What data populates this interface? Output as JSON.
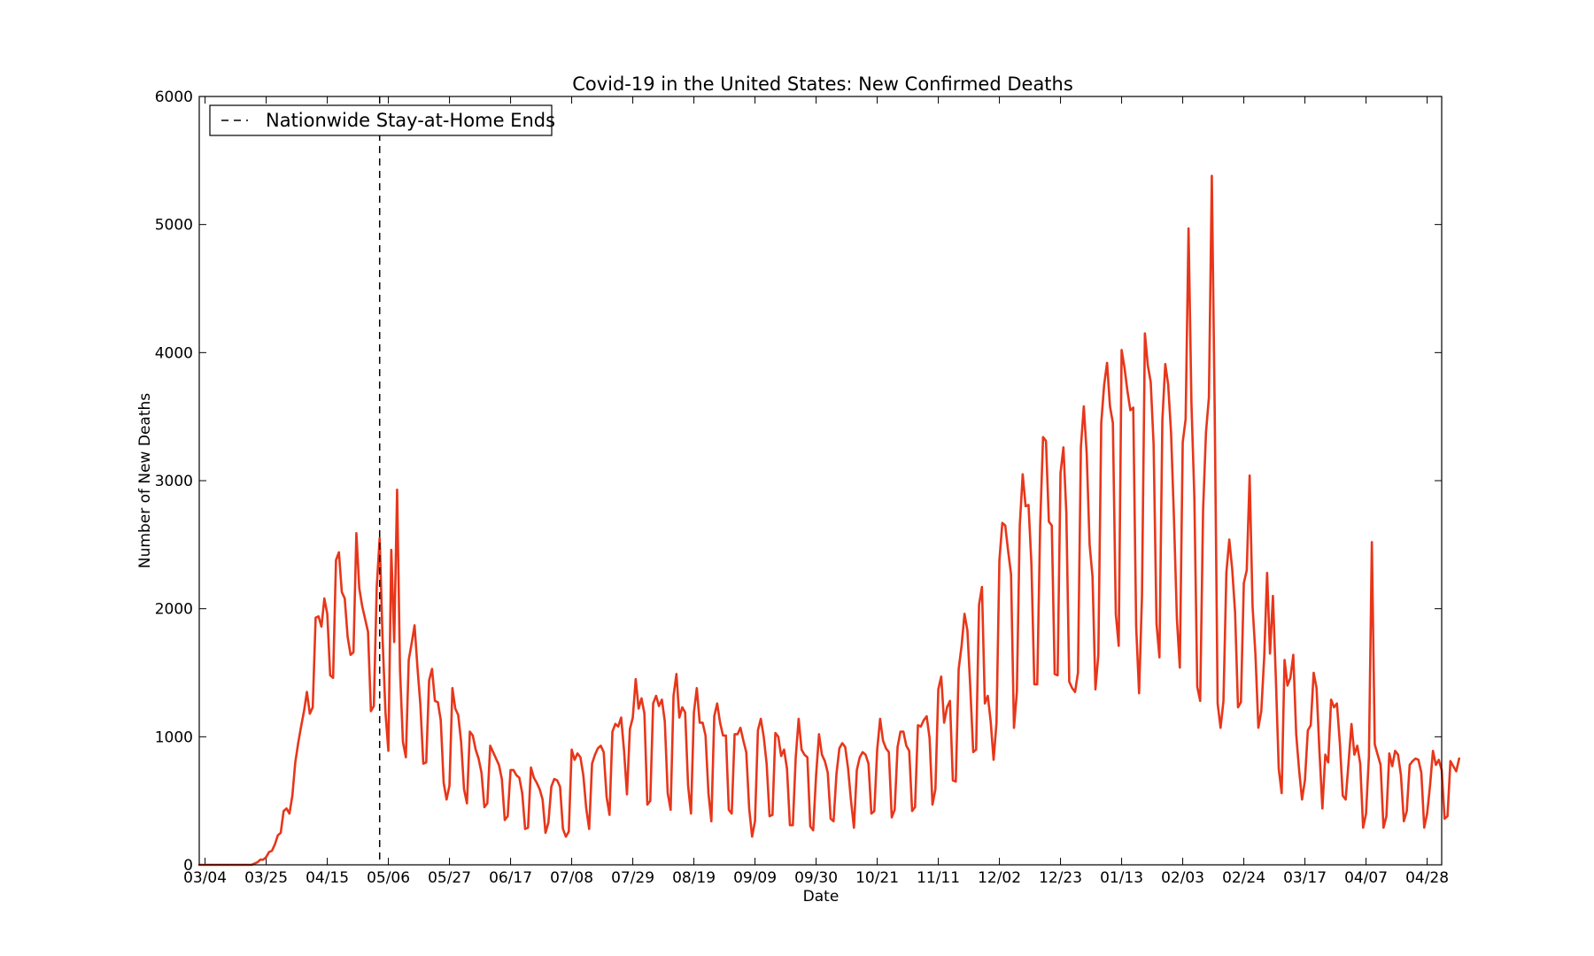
{
  "chart_data": {
    "type": "line",
    "title": "Covid-19 in the United States: New Confirmed Deaths",
    "xlabel": "Date",
    "ylabel": "Number of New Deaths",
    "ylim": [
      0,
      6000
    ],
    "yticks": [
      0,
      1000,
      2000,
      3000,
      4000,
      5000,
      6000
    ],
    "xticks": [
      "03/04",
      "03/25",
      "04/15",
      "05/06",
      "05/27",
      "06/17",
      "07/08",
      "07/29",
      "08/19",
      "09/09",
      "09/30",
      "10/21",
      "11/11",
      "12/02",
      "12/23",
      "01/13",
      "02/03",
      "02/24",
      "03/17",
      "04/07",
      "04/28"
    ],
    "xticks_start_date": "2020-03-04",
    "xtick_interval_days": 21,
    "x_start": "2020-03-02",
    "x_end": "2021-05-03",
    "legend": {
      "position": "top-left",
      "entry": "Nationwide Stay-at-Home Ends"
    },
    "stay_at_home_end_date": "2020-05-03",
    "grid": false,
    "colors": {
      "series": "#e8361a",
      "vline": "#000000",
      "axes": "#000000"
    },
    "series": [
      {
        "name": "",
        "start_date": "2020-03-02",
        "values": [
          0,
          0,
          0,
          0,
          0,
          0,
          0,
          0,
          0,
          0,
          0,
          0,
          0,
          0,
          0,
          0,
          0,
          0,
          0,
          10,
          20,
          40,
          40,
          60,
          100,
          110,
          160,
          230,
          250,
          420,
          440,
          400,
          540,
          800,
          950,
          1080,
          1200,
          1350,
          1180,
          1230,
          1930,
          1940,
          1860,
          2080,
          1960,
          1480,
          1460,
          2380,
          2440,
          2130,
          2080,
          1780,
          1640,
          1660,
          2590,
          2160,
          2020,
          1920,
          1820,
          1200,
          1240,
          2170,
          2550,
          1770,
          1190,
          890,
          2460,
          1740,
          2930,
          1520,
          960,
          840,
          1600,
          1730,
          1870,
          1540,
          1250,
          790,
          800,
          1440,
          1530,
          1280,
          1270,
          1130,
          640,
          510,
          620,
          1380,
          1220,
          1170,
          960,
          590,
          480,
          1040,
          1010,
          900,
          830,
          720,
          450,
          480,
          930,
          880,
          830,
          780,
          670,
          350,
          380,
          740,
          740,
          700,
          680,
          560,
          280,
          290,
          760,
          680,
          640,
          590,
          510,
          250,
          330,
          610,
          670,
          660,
          610,
          280,
          220,
          260,
          900,
          820,
          870,
          840,
          700,
          440,
          280,
          790,
          860,
          910,
          930,
          880,
          530,
          390,
          1040,
          1100,
          1080,
          1150,
          890,
          550,
          1060,
          1150,
          1450,
          1220,
          1300,
          1180,
          470,
          500,
          1260,
          1320,
          1240,
          1290,
          1120,
          560,
          430,
          1320,
          1490,
          1150,
          1230,
          1190,
          620,
          400,
          1190,
          1380,
          1110,
          1110,
          1010,
          560,
          340,
          1160,
          1260,
          1110,
          1010,
          1010,
          430,
          400,
          1020,
          1020,
          1070,
          970,
          880,
          440,
          220,
          340,
          1050,
          1140,
          1000,
          790,
          380,
          390,
          1030,
          1000,
          850,
          900,
          750,
          310,
          310,
          840,
          1140,
          900,
          860,
          840,
          300,
          270,
          700,
          1020,
          860,
          810,
          720,
          360,
          340,
          710,
          910,
          950,
          920,
          750,
          500,
          290,
          740,
          840,
          880,
          860,
          790,
          400,
          420,
          900,
          1140,
          970,
          910,
          880,
          370,
          430,
          920,
          1040,
          1040,
          930,
          890,
          420,
          450,
          1090,
          1080,
          1130,
          1160,
          990,
          470,
          590,
          1370,
          1470,
          1110,
          1230,
          1280,
          660,
          650,
          1530,
          1710,
          1960,
          1830,
          1380,
          880,
          900,
          2030,
          2170,
          1260,
          1320,
          1120,
          820,
          1110,
          2380,
          2670,
          2650,
          2450,
          2270,
          1070,
          1350,
          2650,
          3050,
          2800,
          2810,
          2350,
          1410,
          1410,
          2650,
          3340,
          3310,
          2680,
          2650,
          1490,
          1480,
          3060,
          3260,
          2750,
          1430,
          1380,
          1350,
          1500,
          3260,
          3580,
          3210,
          2500,
          2250,
          1370,
          1640,
          3450,
          3750,
          3920,
          3580,
          3450,
          1960,
          1710,
          4020,
          3880,
          3700,
          3550,
          3570,
          1860,
          1340,
          2100,
          4150,
          3900,
          3770,
          3280,
          1880,
          1620,
          3470,
          3910,
          3750,
          3370,
          2700,
          1920,
          1540,
          3300,
          3480,
          4970,
          3600,
          2870,
          1390,
          1280,
          2770,
          3380,
          3650,
          5380,
          3530,
          1260,
          1070,
          1280,
          2280,
          2540,
          2310,
          1970,
          1230,
          1270,
          2200,
          2300,
          3040,
          2020,
          1640,
          1070,
          1200,
          1620,
          2280,
          1650,
          2100,
          1460,
          750,
          560,
          1600,
          1400,
          1460,
          1640,
          1020,
          740,
          510,
          660,
          1050,
          1090,
          1500,
          1380,
          880,
          440,
          860,
          800,
          1290,
          1230,
          1260,
          950,
          540,
          510,
          800,
          1100,
          860,
          930,
          790,
          290,
          400,
          850,
          2520,
          940,
          860,
          780,
          290,
          380,
          870,
          770,
          890,
          860,
          700,
          340,
          420,
          780,
          810,
          830,
          820,
          720,
          290,
          400,
          620,
          890,
          780,
          820,
          740,
          360,
          380,
          810,
          770,
          730,
          830
        ]
      }
    ]
  }
}
